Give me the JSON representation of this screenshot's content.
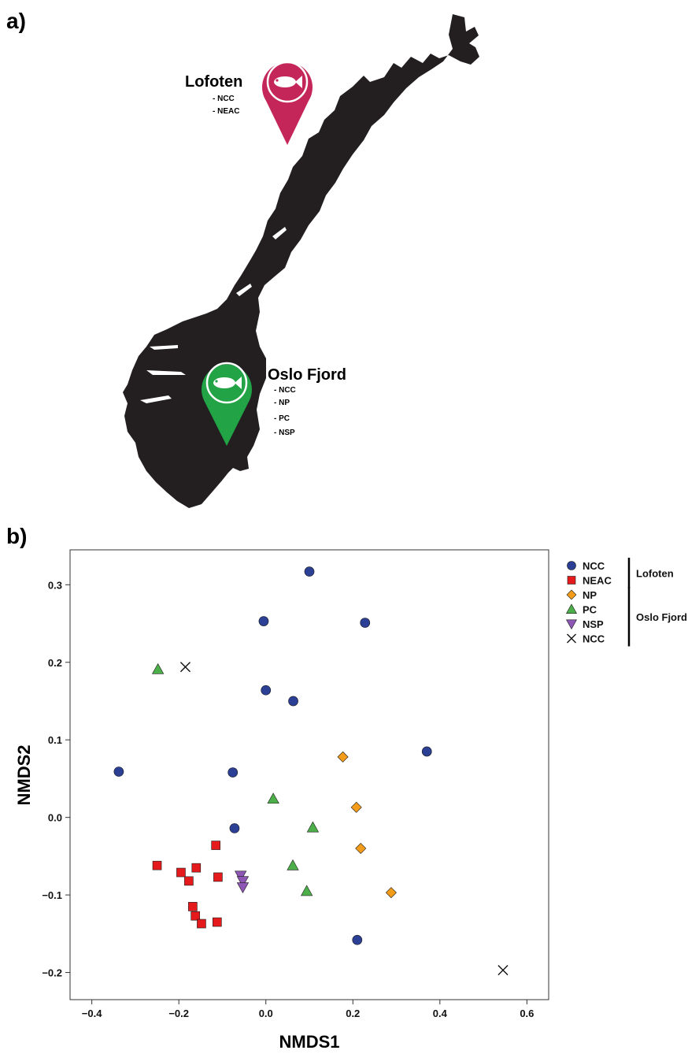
{
  "panel_labels": {
    "a": "a)",
    "b": "b)"
  },
  "map": {
    "sites": [
      {
        "name": "Lofoten",
        "populations": [
          "- NCC",
          "- NEAC"
        ],
        "color": "#c4265a"
      },
      {
        "name": "Oslo Fjord",
        "populations": [
          "- NCC",
          "- NP",
          "- PC",
          "- NSP"
        ],
        "color": "#22a345"
      }
    ],
    "land_color": "#231f20",
    "pin_icon": "fish-icon"
  },
  "chart_data": {
    "type": "scatter",
    "xlabel": "NMDS1",
    "ylabel": "NMDS2",
    "xlim": [
      -0.45,
      0.65
    ],
    "ylim": [
      -0.235,
      0.345
    ],
    "xticks": [
      {
        "value": -0.4,
        "label": "−0.4"
      },
      {
        "value": -0.2,
        "label": "−0.2"
      },
      {
        "value": 0.0,
        "label": "0.0"
      },
      {
        "value": 0.2,
        "label": "0.2"
      },
      {
        "value": 0.4,
        "label": "0.4"
      },
      {
        "value": 0.6,
        "label": "0.6"
      }
    ],
    "yticks": [
      {
        "value": -0.2,
        "label": "−0.2"
      },
      {
        "value": -0.1,
        "label": "−0.1"
      },
      {
        "value": 0.0,
        "label": "0.0"
      },
      {
        "value": 0.1,
        "label": "0.1"
      },
      {
        "value": 0.2,
        "label": "0.2"
      },
      {
        "value": 0.3,
        "label": "0.3"
      }
    ],
    "grid": false,
    "legend_position": "outside-right",
    "legend_groups": [
      {
        "label": "Lofoten",
        "series": [
          0,
          1
        ]
      },
      {
        "label": "Oslo Fjord",
        "series": [
          2,
          3,
          4,
          5
        ]
      }
    ],
    "series": [
      {
        "name": "NCC",
        "marker": "circle",
        "color": "#2b3f94",
        "points": [
          [
            0.1,
            0.317
          ],
          [
            -0.005,
            0.253
          ],
          [
            0.228,
            0.251
          ],
          [
            0.0,
            0.164
          ],
          [
            0.063,
            0.15
          ],
          [
            0.37,
            0.085
          ],
          [
            -0.338,
            0.059
          ],
          [
            -0.076,
            0.058
          ],
          [
            -0.072,
            -0.014
          ],
          [
            0.21,
            -0.158
          ]
        ]
      },
      {
        "name": "NEAC",
        "marker": "square",
        "color": "#e41a1c",
        "points": [
          [
            -0.25,
            -0.062
          ],
          [
            -0.115,
            -0.036
          ],
          [
            -0.195,
            -0.071
          ],
          [
            -0.16,
            -0.065
          ],
          [
            -0.177,
            -0.082
          ],
          [
            -0.11,
            -0.077
          ],
          [
            -0.168,
            -0.115
          ],
          [
            -0.162,
            -0.127
          ],
          [
            -0.148,
            -0.137
          ],
          [
            -0.112,
            -0.135
          ]
        ]
      },
      {
        "name": "NP",
        "marker": "diamond",
        "color": "#f39c1a",
        "points": [
          [
            0.177,
            0.078
          ],
          [
            0.208,
            0.013
          ],
          [
            0.218,
            -0.04
          ],
          [
            0.288,
            -0.097
          ]
        ]
      },
      {
        "name": "PC",
        "marker": "triangle-up",
        "color": "#4daf4a",
        "points": [
          [
            -0.248,
            0.191
          ],
          [
            0.017,
            0.024
          ],
          [
            0.108,
            -0.013
          ],
          [
            0.062,
            -0.062
          ],
          [
            0.094,
            -0.095
          ]
        ]
      },
      {
        "name": "NSP",
        "marker": "triangle-down",
        "color": "#8e57b5",
        "points": [
          [
            -0.058,
            -0.075
          ],
          [
            -0.053,
            -0.082
          ],
          [
            -0.053,
            -0.09
          ]
        ]
      },
      {
        "name": "NCC",
        "marker": "x",
        "color": "#111111",
        "points": [
          [
            -0.185,
            0.194
          ],
          [
            0.545,
            -0.197
          ]
        ]
      }
    ]
  }
}
